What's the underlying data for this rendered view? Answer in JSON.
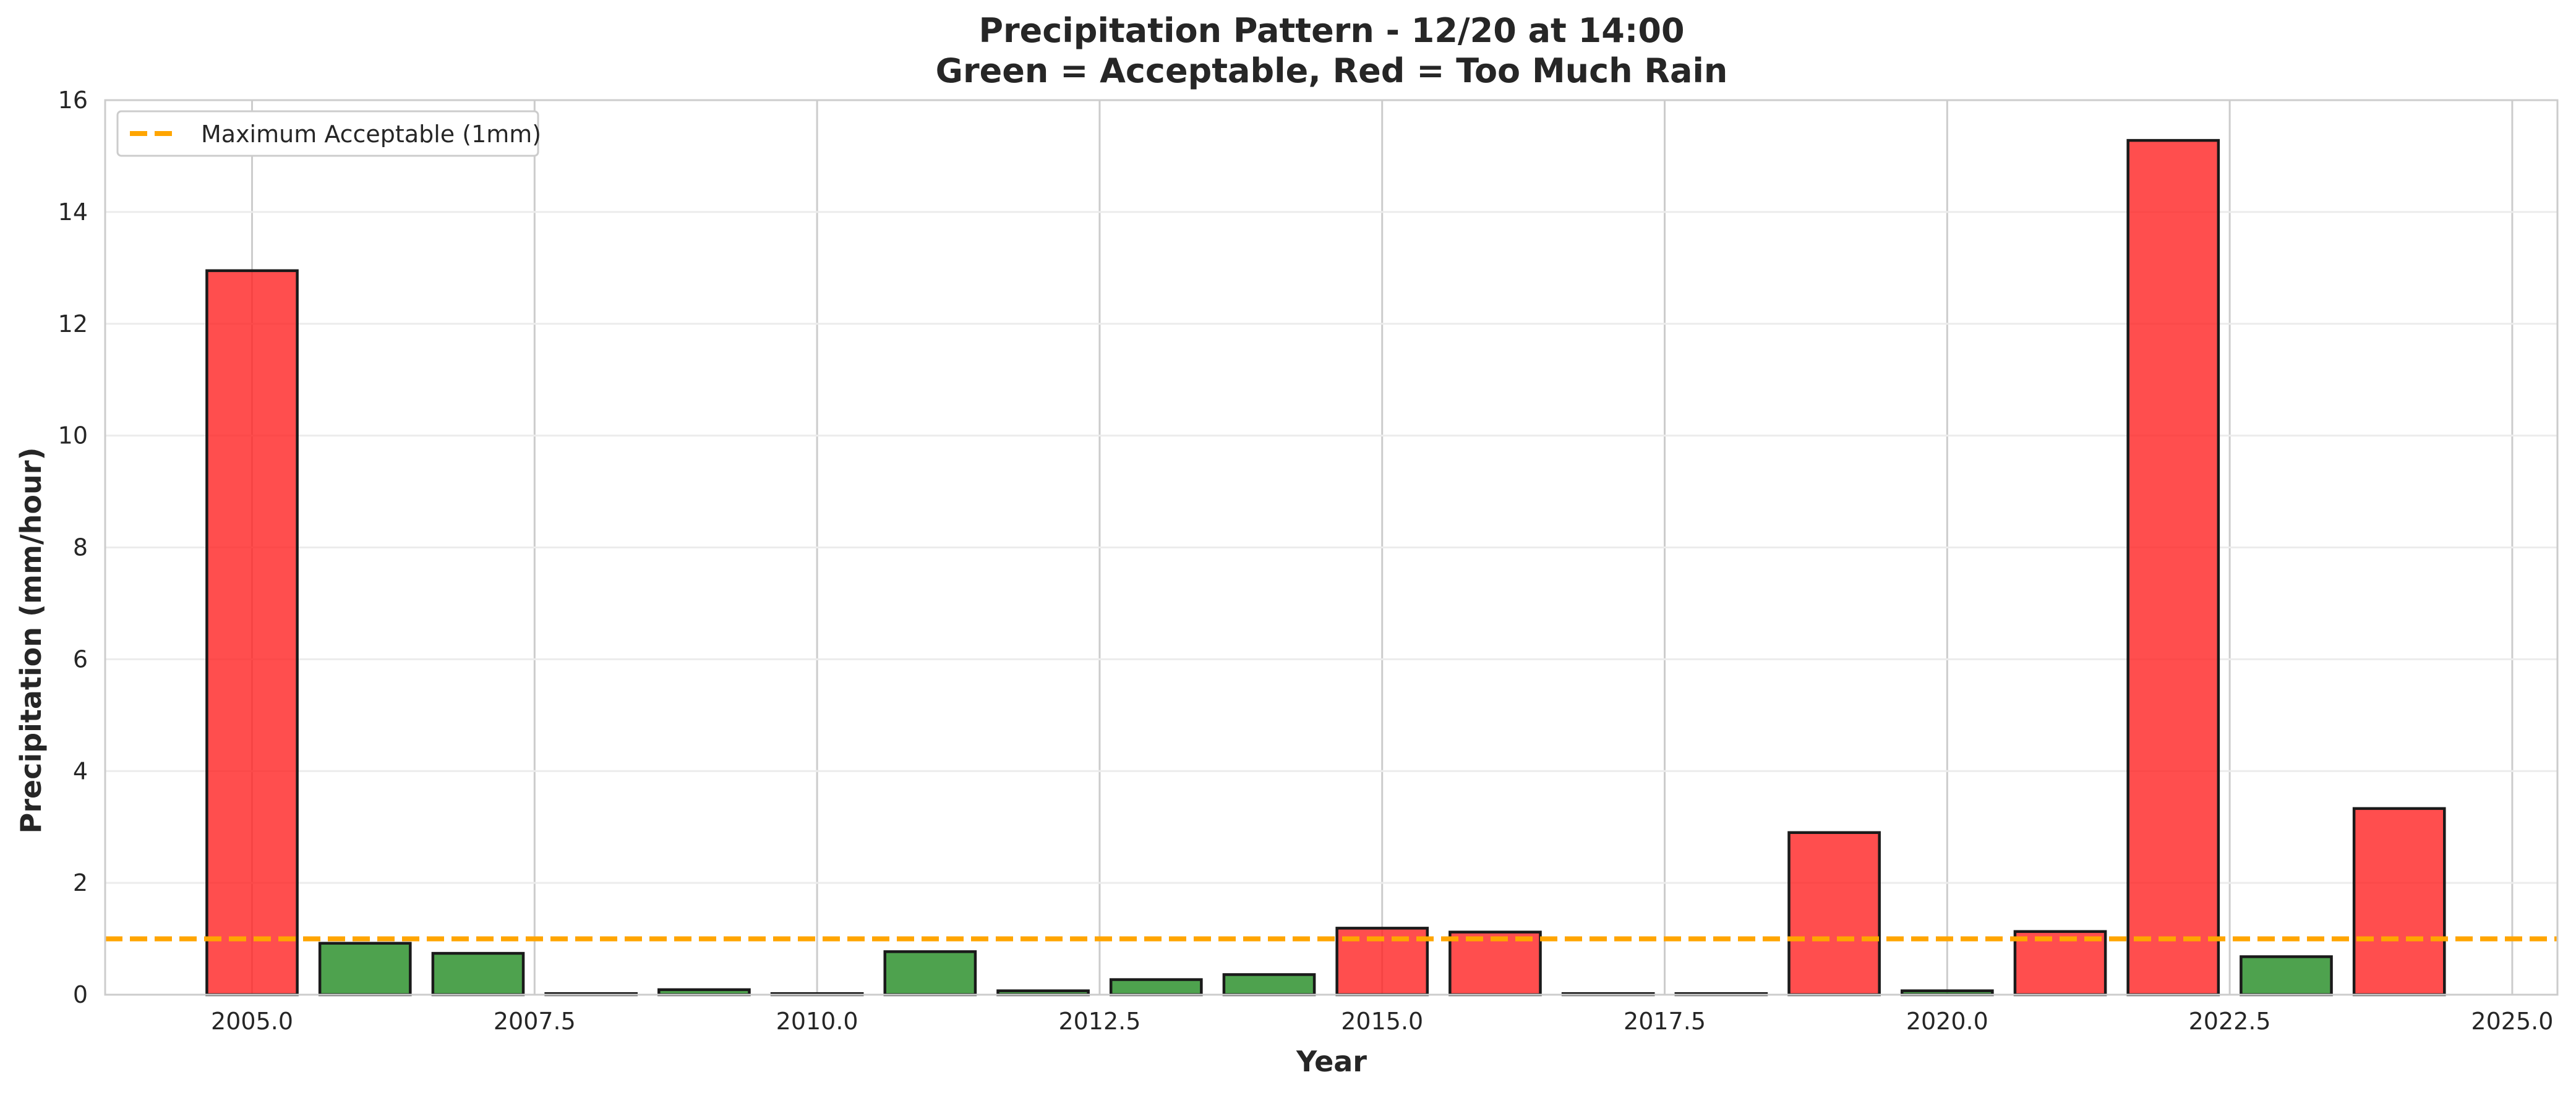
{
  "chart_data": {
    "type": "bar",
    "title_line1": "Precipitation Pattern - 12/20 at 14:00",
    "title_line2": "Green = Acceptable, Red = Too Much Rain",
    "xlabel": "Year",
    "ylabel": "Precipitation (mm/hour)",
    "xlim": [
      2003.7,
      2025.4
    ],
    "ylim": [
      0,
      16
    ],
    "x_ticks": [
      2005.0,
      2007.5,
      2010.0,
      2012.5,
      2015.0,
      2017.5,
      2020.0,
      2022.5,
      2025.0
    ],
    "x_tick_labels": [
      "2005.0",
      "2007.5",
      "2010.0",
      "2012.5",
      "2015.0",
      "2017.5",
      "2020.0",
      "2022.5",
      "2025.0"
    ],
    "y_ticks": [
      0,
      2,
      4,
      6,
      8,
      10,
      12,
      14,
      16
    ],
    "y_tick_labels": [
      "0",
      "2",
      "4",
      "6",
      "8",
      "10",
      "12",
      "14",
      "16"
    ],
    "x": [
      2005,
      2006,
      2007,
      2008,
      2009,
      2010,
      2011,
      2012,
      2013,
      2014,
      2015,
      2016,
      2017,
      2018,
      2019,
      2020,
      2021,
      2022,
      2023,
      2024
    ],
    "values": [
      12.95,
      0.92,
      0.74,
      0.02,
      0.09,
      0.02,
      0.77,
      0.07,
      0.27,
      0.36,
      1.19,
      1.12,
      0.02,
      0.02,
      2.9,
      0.07,
      1.13,
      15.28,
      0.68,
      3.33
    ],
    "threshold": 1,
    "threshold_label": "Maximum Acceptable (1mm)",
    "legend_position": "upper-left",
    "grid": true,
    "colors": {
      "acceptable": "#228b22",
      "too_much": "#ff2222",
      "threshold": "#ffa500",
      "bar_edge": "#1a1a1a",
      "grid": "#cccccc",
      "spine": "#cccccc"
    }
  }
}
